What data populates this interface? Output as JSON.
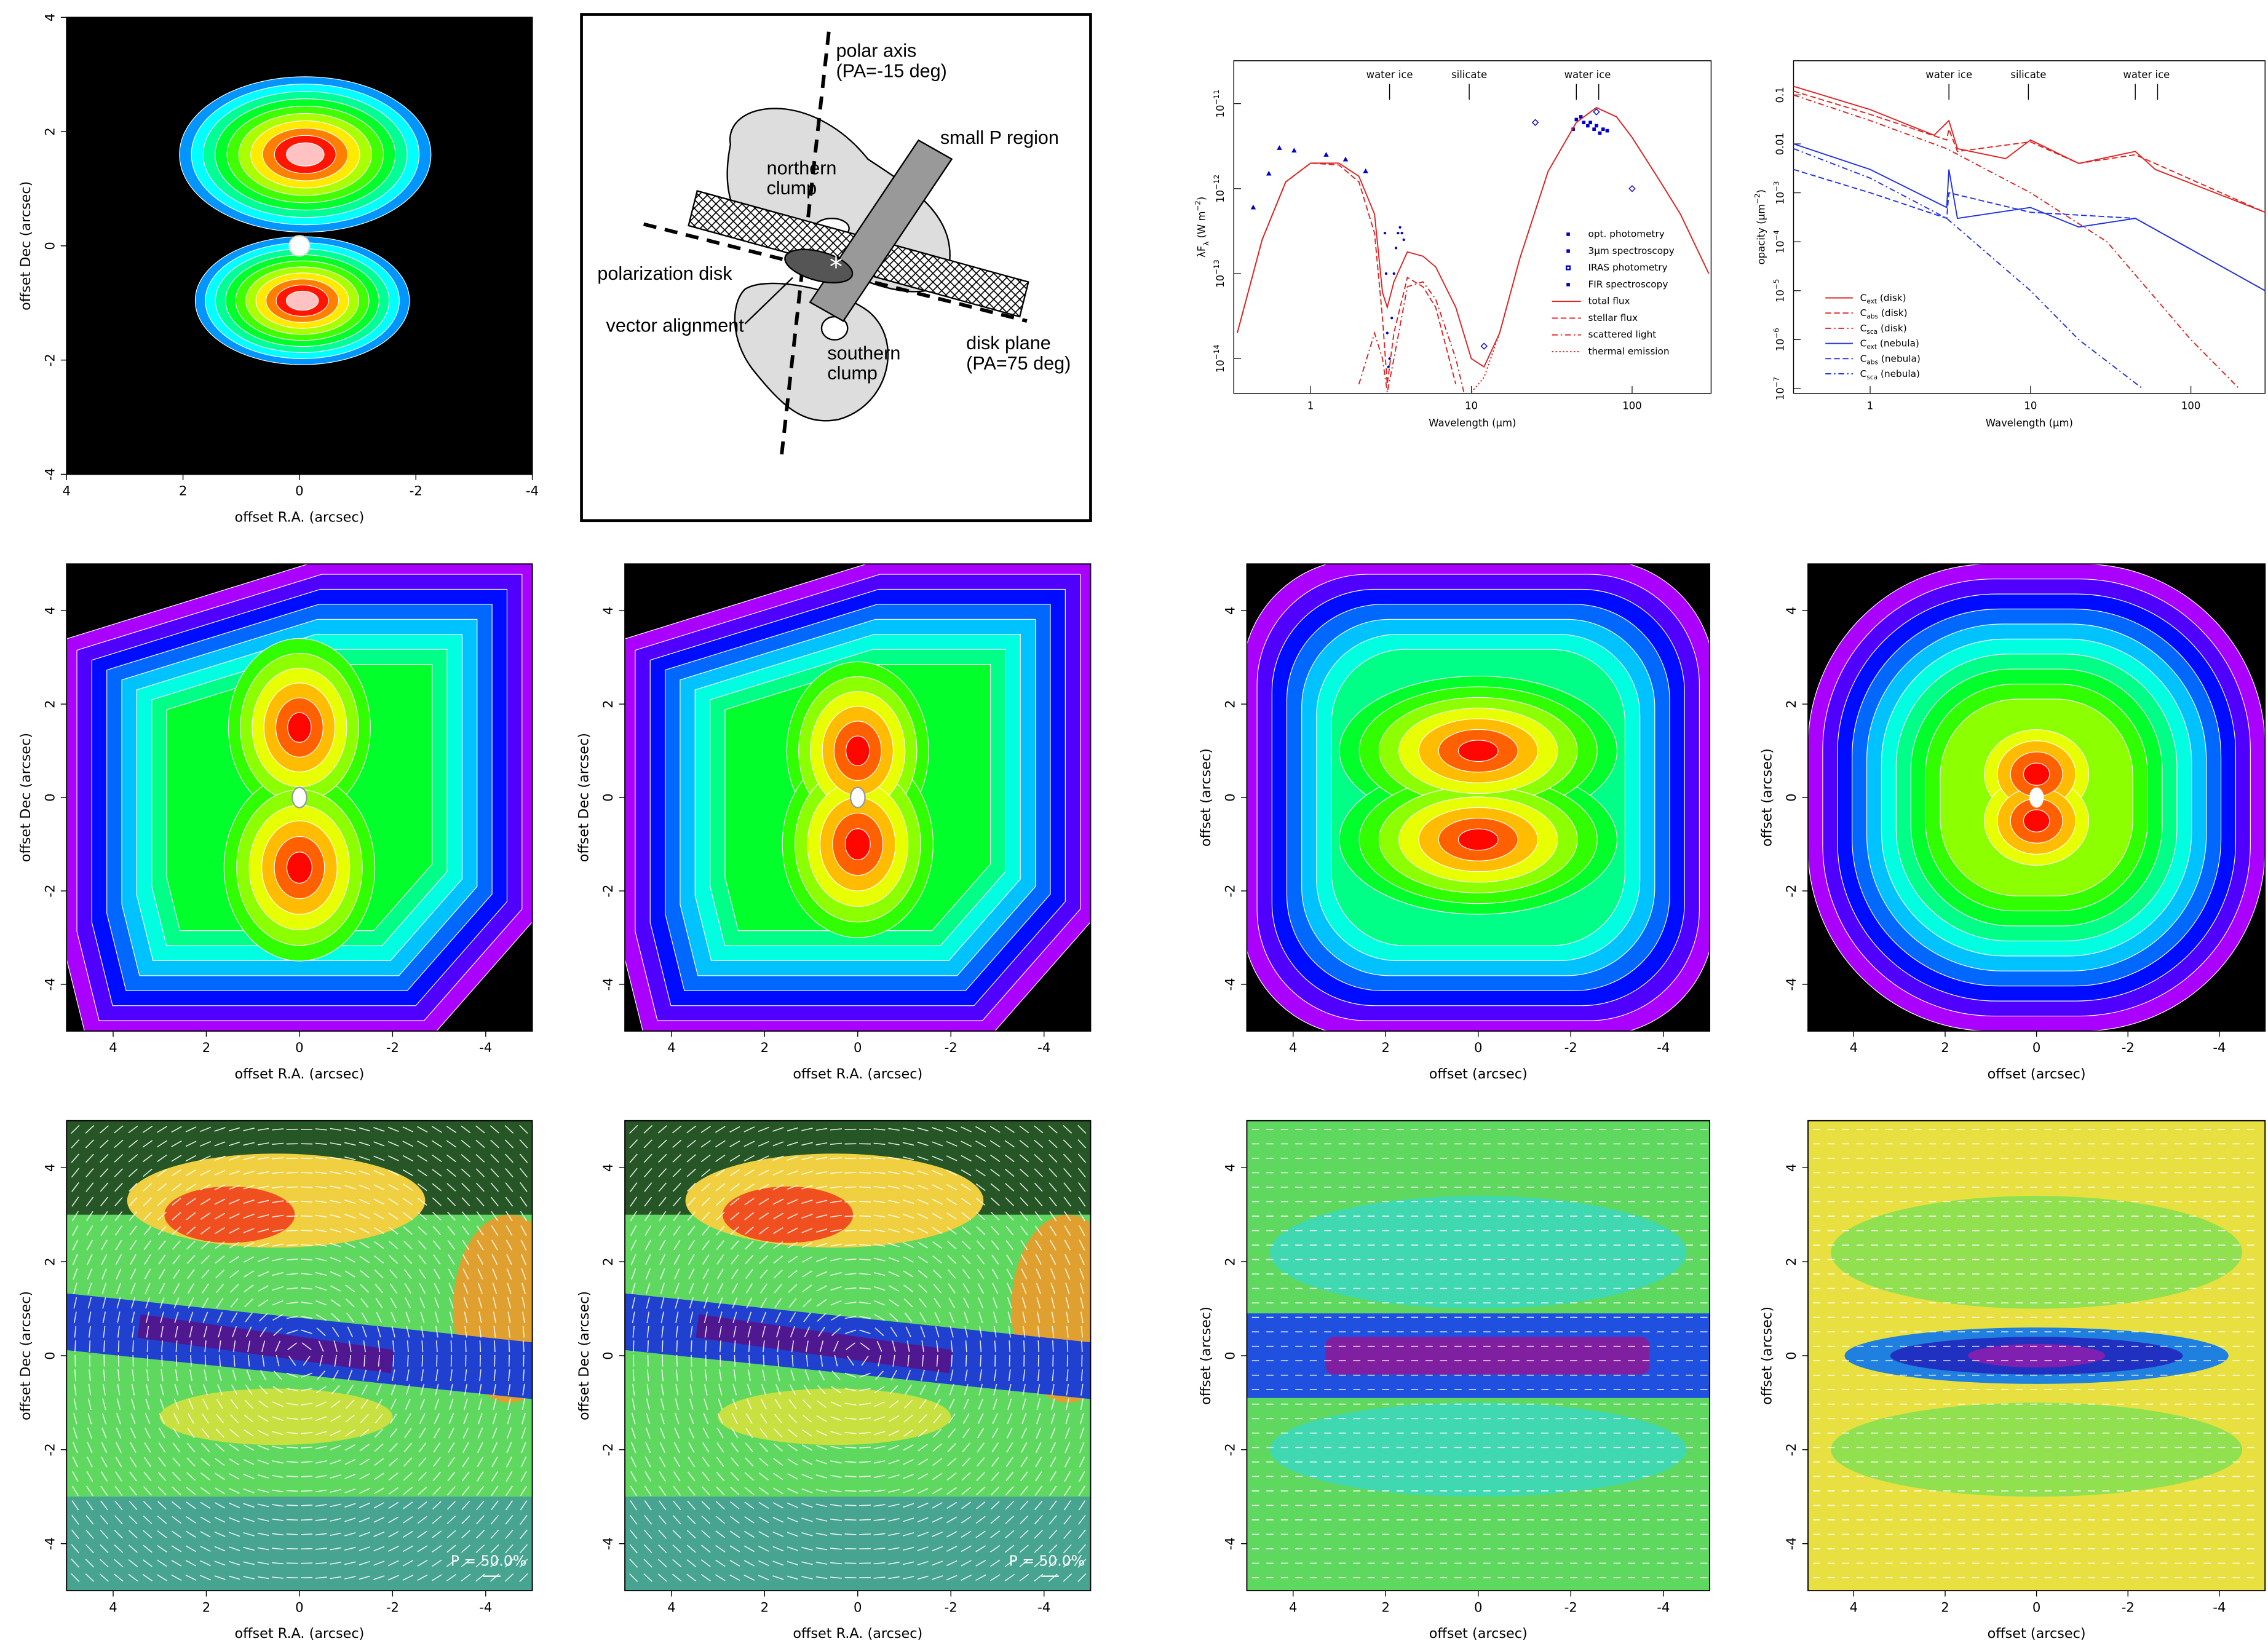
{
  "panels": [
    {
      "kind": "image",
      "xlabel": "offset R.A. (arcsec)",
      "ylabel": "offset Dec (arcsec)",
      "xlim": [
        4,
        -4
      ],
      "ylim": [
        -4,
        4
      ],
      "xticks": [
        4,
        2,
        0,
        -2,
        -4
      ],
      "yticks": [
        -4,
        -2,
        0,
        2,
        4
      ]
    },
    {
      "kind": "diagram",
      "polar_axis": "polar axis",
      "polar_pa": "(PA=-15 deg)",
      "small_p": "small P region",
      "northern": "northern",
      "northern_2": "clump",
      "pol_disk": "polarization disk",
      "vector": "vector alignment",
      "disk_plane": "disk plane",
      "disk_pa": "(PA=75 deg)",
      "southern": "southern",
      "southern_2": "clump"
    },
    {
      "kind": "chart",
      "xlabel": "Wavelength (μm)",
      "ylabel": [
        "λF",
        "λ",
        " (W m",
        "−2",
        ")"
      ],
      "xscale": "log",
      "yscale": "log",
      "xlim": [
        0.333,
        310
      ],
      "ylim": [
        3.9e-15,
        3.2e-11
      ],
      "xticks": [
        1,
        10,
        100
      ],
      "yticks": [
        {
          "value": 1e-14,
          "label": "10",
          "sup": "−14"
        },
        {
          "value": 1e-13,
          "label": "10",
          "sup": "−13"
        },
        {
          "value": 1e-12,
          "label": "10",
          "sup": "−12"
        },
        {
          "value": 1e-11,
          "label": "10",
          "sup": "−11"
        }
      ],
      "annotations": [
        {
          "label": "water ice",
          "x": [
            3.1
          ]
        },
        {
          "label": "silicate",
          "x": [
            9.7
          ]
        },
        {
          "label": "water ice",
          "x": [
            45,
            62
          ]
        }
      ],
      "series": [
        {
          "name": "opt. photometry",
          "color": "#0000cc",
          "marker": "triangle",
          "x": [
            0.44,
            0.55,
            0.64,
            0.79,
            1.25,
            1.65,
            2.2
          ],
          "y": [
            6e-13,
            1.5e-12,
            3e-12,
            2.8e-12,
            2.5e-12,
            2.2e-12,
            1.6e-12
          ]
        },
        {
          "name": "3μm spectroscopy",
          "color": "#0000cc",
          "marker": "dot",
          "x": [
            2.9,
            2.95,
            3.0,
            3.05,
            3.1,
            3.2,
            3.3,
            3.4,
            3.5,
            3.6,
            3.7,
            3.8
          ],
          "y": [
            3e-13,
            1e-13,
            2e-14,
            8e-15,
            1e-14,
            3e-14,
            1e-13,
            2e-13,
            3e-13,
            3.5e-13,
            3e-13,
            2.5e-13
          ]
        },
        {
          "name": "IRAS photometry",
          "color": "#0000cc",
          "marker": "diamond",
          "x": [
            12,
            25,
            60,
            100
          ],
          "y": [
            1.4e-14,
            6e-12,
            8e-12,
            1e-12
          ]
        },
        {
          "name": "FIR spectroscopy",
          "color": "#0000cc",
          "marker": "square",
          "x": [
            43,
            45,
            48,
            50,
            53,
            55,
            58,
            60,
            63,
            66,
            70
          ],
          "y": [
            5e-12,
            6.5e-12,
            7e-12,
            6e-12,
            5.5e-12,
            6e-12,
            5e-12,
            5.5e-12,
            4.5e-12,
            5e-12,
            4.8e-12
          ]
        },
        {
          "name": "total flux",
          "color": "#e02020",
          "dash": "solid",
          "x": [
            0.35,
            0.5,
            0.7,
            1,
            1.5,
            2,
            2.5,
            2.8,
            3,
            3.3,
            4,
            5,
            6,
            8,
            10,
            12,
            15,
            20,
            30,
            45,
            60,
            80,
            100,
            150,
            200,
            300
          ],
          "y": [
            2e-14,
            2.5e-13,
            1.2e-12,
            2e-12,
            2e-12,
            1.4e-12,
            5e-13,
            6e-14,
            4e-14,
            8e-14,
            1.8e-13,
            1.6e-13,
            1.2e-13,
            4e-14,
            1e-14,
            8e-15,
            2e-14,
            1.5e-13,
            1.6e-12,
            6e-12,
            9e-12,
            7e-12,
            4e-12,
            1.2e-12,
            5e-13,
            1e-13
          ]
        },
        {
          "name": "stellar flux",
          "color": "#e02020",
          "dash": "dashed",
          "x": [
            0.35,
            0.5,
            0.7,
            1,
            1.5,
            2,
            2.5,
            2.8,
            3,
            3.3,
            4,
            5,
            6,
            8
          ],
          "y": [
            2e-14,
            2.5e-13,
            1.2e-12,
            2e-12,
            1.9e-12,
            1.2e-12,
            3e-13,
            3e-14,
            5e-15,
            2e-14,
            9e-14,
            7e-14,
            4e-14,
            5e-15
          ]
        },
        {
          "name": "scattered light",
          "color": "#e02020",
          "dash": "dashdot",
          "x": [
            2,
            2.5,
            2.8,
            3,
            3.3,
            4,
            5,
            6,
            8,
            9
          ],
          "y": [
            5e-15,
            2e-14,
            1e-14,
            4e-15,
            1e-14,
            7e-14,
            8e-14,
            5e-14,
            1e-14,
            4e-15
          ]
        },
        {
          "name": "thermal emission",
          "color": "#e02020",
          "dash": "dotted",
          "x": [
            10,
            12,
            15,
            20,
            30,
            45,
            60,
            80,
            100,
            150,
            200,
            300
          ],
          "y": [
            4e-15,
            6e-15,
            2e-14,
            1.5e-13,
            1.6e-12,
            6e-12,
            9e-12,
            7e-12,
            4e-12,
            1.2e-12,
            5e-13,
            1e-13
          ]
        }
      ]
    },
    {
      "kind": "chart",
      "xlabel": "Wavelength (μm)",
      "ylabel": [
        "opacity (μm",
        "−2",
        ")"
      ],
      "xscale": "log",
      "yscale": "log",
      "xlim": [
        0.333,
        290
      ],
      "ylim": [
        8e-08,
        0.5
      ],
      "xticks": [
        1,
        10,
        100
      ],
      "yticks": [
        {
          "value": 1e-07,
          "label": "10",
          "sup": "−7"
        },
        {
          "value": 1e-06,
          "label": "10",
          "sup": "−6"
        },
        {
          "value": 1e-05,
          "label": "10",
          "sup": "−5"
        },
        {
          "value": 0.0001,
          "label": "10",
          "sup": "−4"
        },
        {
          "value": 0.001,
          "label": "10",
          "sup": "−3"
        },
        0.01,
        0.1
      ],
      "annotations": [
        {
          "label": "water ice",
          "x": [
            3.1
          ]
        },
        {
          "label": "silicate",
          "x": [
            9.7
          ]
        },
        {
          "label": "water ice",
          "x": [
            45,
            62
          ]
        }
      ],
      "series": [
        {
          "name": "C",
          "sub": "ext",
          "qualifier": " (disk)",
          "color": "#e02020",
          "dash": "solid",
          "x": [
            0.333,
            1,
            2.5,
            3.1,
            3.5,
            7,
            10,
            20,
            45,
            60,
            290
          ],
          "y": [
            0.15,
            0.05,
            0.015,
            0.03,
            0.008,
            0.005,
            0.012,
            0.004,
            0.007,
            0.003,
            0.0004
          ]
        },
        {
          "name": "C",
          "sub": "abs",
          "qualifier": " (disk)",
          "color": "#e02020",
          "dash": "dashed",
          "x": [
            0.333,
            1,
            3,
            3.1,
            3.5,
            10,
            20,
            45,
            290
          ],
          "y": [
            0.12,
            0.04,
            0.012,
            0.02,
            0.007,
            0.011,
            0.004,
            0.006,
            0.0004
          ]
        },
        {
          "name": "C",
          "sub": "sca",
          "qualifier": " (disk)",
          "color": "#e02020",
          "dash": "dashdot",
          "x": [
            0.333,
            1,
            3,
            10,
            30,
            100,
            200
          ],
          "y": [
            0.1,
            0.03,
            0.008,
            0.001,
            0.0001,
            1e-06,
            1e-07
          ]
        },
        {
          "name": "C",
          "sub": "ext",
          "qualifier": " (nebula)",
          "color": "#2030e0",
          "dash": "solid",
          "x": [
            0.333,
            1,
            3,
            3.1,
            3.5,
            10,
            20,
            45,
            290
          ],
          "y": [
            0.01,
            0.003,
            0.0005,
            0.003,
            0.0003,
            0.0005,
            0.0002,
            0.0003,
            1e-05
          ]
        },
        {
          "name": "C",
          "sub": "abs",
          "qualifier": " (nebula)",
          "color": "#2030e0",
          "dash": "dashed",
          "x": [
            0.333,
            1,
            3,
            3.1,
            10,
            45,
            290
          ],
          "y": [
            0.003,
            0.001,
            0.0003,
            0.001,
            0.0004,
            0.0003,
            1e-05
          ]
        },
        {
          "name": "C",
          "sub": "sca",
          "qualifier": " (nebula)",
          "color": "#2030e0",
          "dash": "dashdot",
          "x": [
            0.333,
            1,
            3,
            10,
            20,
            50
          ],
          "y": [
            0.008,
            0.002,
            0.0003,
            1e-05,
            1e-06,
            1e-07
          ]
        }
      ]
    },
    {
      "kind": "image",
      "xlabel": "offset R.A. (arcsec)",
      "ylabel": "offset Dec (arcsec)",
      "xlim": [
        5,
        -5
      ],
      "ylim": [
        -5,
        5
      ],
      "xticks": [
        4,
        2,
        0,
        -2,
        -4
      ],
      "yticks": [
        -4,
        -2,
        0,
        2,
        4
      ]
    },
    {
      "kind": "image",
      "xlabel": "offset R.A. (arcsec)",
      "ylabel": "offset Dec (arcsec)",
      "xlim": [
        5,
        -5
      ],
      "ylim": [
        -5,
        5
      ],
      "xticks": [
        4,
        2,
        0,
        -2,
        -4
      ],
      "yticks": [
        -4,
        -2,
        0,
        2,
        4
      ]
    },
    {
      "kind": "image",
      "xlabel": "offset (arcsec)",
      "ylabel": "offset (arcsec)",
      "xlim": [
        5,
        -5
      ],
      "ylim": [
        -5,
        5
      ],
      "xticks": [
        4,
        2,
        0,
        -2,
        -4
      ],
      "yticks": [
        -4,
        -2,
        0,
        2,
        4
      ]
    },
    {
      "kind": "image",
      "xlabel": "offset (arcsec)",
      "ylabel": "offset (arcsec)",
      "xlim": [
        5,
        -5
      ],
      "ylim": [
        -5,
        5
      ],
      "xticks": [
        4,
        2,
        0,
        -2,
        -4
      ],
      "yticks": [
        -4,
        -2,
        0,
        2,
        4
      ]
    },
    {
      "kind": "image",
      "xlabel": "offset R.A. (arcsec)",
      "ylabel": "offset Dec (arcsec)",
      "xlim": [
        5,
        -5
      ],
      "ylim": [
        -5,
        5
      ],
      "xticks": [
        4,
        2,
        0,
        -2,
        -4
      ],
      "yticks": [
        -4,
        -2,
        0,
        2,
        4
      ],
      "scale_label": "P = 50.0%"
    },
    {
      "kind": "image",
      "xlabel": "offset R.A. (arcsec)",
      "ylabel": "offset Dec (arcsec)",
      "xlim": [
        5,
        -5
      ],
      "ylim": [
        -5,
        5
      ],
      "xticks": [
        4,
        2,
        0,
        -2,
        -4
      ],
      "yticks": [
        -4,
        -2,
        0,
        2,
        4
      ],
      "scale_label": "P = 50.0%"
    },
    {
      "kind": "image",
      "xlabel": "offset (arcsec)",
      "ylabel": "offset (arcsec)",
      "xlim": [
        5,
        -5
      ],
      "ylim": [
        -5,
        5
      ],
      "xticks": [
        4,
        2,
        0,
        -2,
        -4
      ],
      "yticks": [
        -4,
        -2,
        0,
        2,
        4
      ]
    },
    {
      "kind": "image",
      "xlabel": "offset (arcsec)",
      "ylabel": "offset (arcsec)",
      "xlim": [
        5,
        -5
      ],
      "ylim": [
        -5,
        5
      ],
      "xticks": [
        4,
        2,
        0,
        -2,
        -4
      ],
      "yticks": [
        -4,
        -2,
        0,
        2,
        4
      ]
    }
  ]
}
